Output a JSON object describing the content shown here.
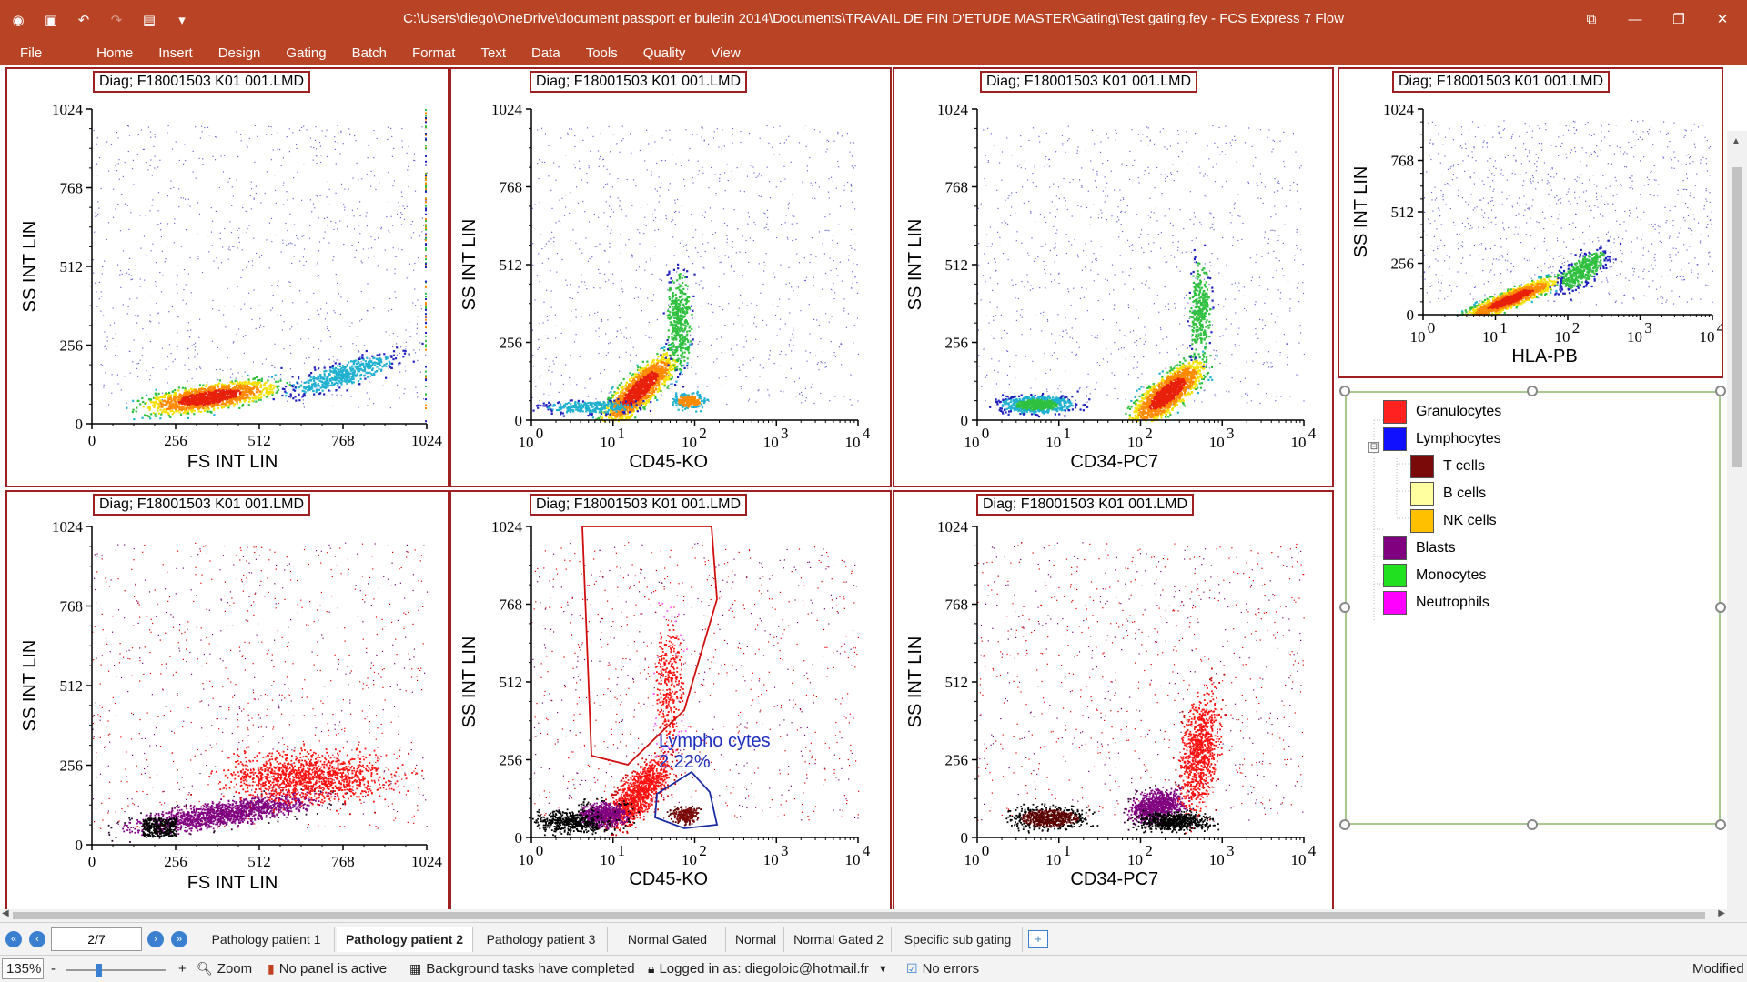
{
  "window": {
    "title": "C:\\Users\\diego\\OneDrive\\document passport er buletin 2014\\Documents\\TRAVAIL DE FIN D'ETUDE MASTER\\Gating\\Test gating.fey - FCS Express 7 Flow",
    "quick_access_icons": [
      "app-icon",
      "save-icon",
      "undo-icon",
      "redo-icon",
      "print-icon",
      "customize-icon"
    ],
    "controls": [
      "restore-icon",
      "minimize-icon",
      "maximize-icon",
      "close-icon"
    ]
  },
  "menu": [
    "File",
    "Home",
    "Insert",
    "Design",
    "Gating",
    "Batch",
    "Format",
    "Text",
    "Data",
    "Tools",
    "Quality",
    "View"
  ],
  "plots": [
    {
      "id": "p1",
      "title": "Diag; F18001503 K01 001.LMD",
      "xlabel": "FS INT LIN",
      "ylabel": "SS INT LIN",
      "x_scale": "linear",
      "x_ticks": [
        "0",
        "256",
        "512",
        "768",
        "1024"
      ],
      "y_ticks": [
        "0",
        "256",
        "512",
        "768",
        "1024"
      ],
      "style": "density"
    },
    {
      "id": "p2",
      "title": "Diag; F18001503 K01 001.LMD",
      "xlabel": "CD45-KO",
      "ylabel": "SS INT LIN",
      "x_scale": "log",
      "x_ticks": [
        "0",
        "1",
        "2",
        "3",
        "4"
      ],
      "y_ticks": [
        "0",
        "256",
        "512",
        "768",
        "1024"
      ],
      "style": "density"
    },
    {
      "id": "p3",
      "title": "Diag; F18001503 K01 001.LMD",
      "xlabel": "CD34-PC7",
      "ylabel": "SS INT LIN",
      "x_scale": "log",
      "x_ticks": [
        "0",
        "1",
        "2",
        "3",
        "4"
      ],
      "y_ticks": [
        "0",
        "256",
        "512",
        "768",
        "1024"
      ],
      "style": "density"
    },
    {
      "id": "p4",
      "title": "Diag; F18001503 K01 001.LMD",
      "xlabel": "HLA-PB",
      "ylabel": "SS INT LIN",
      "x_scale": "log",
      "x_ticks": [
        "0",
        "1",
        "2",
        "3",
        "4"
      ],
      "y_ticks": [
        "0",
        "256",
        "512",
        "768",
        "1024"
      ],
      "style": "density"
    },
    {
      "id": "p5",
      "title": "Diag; F18001503 K01 001.LMD",
      "xlabel": "FS INT LIN",
      "ylabel": "SS INT LIN",
      "x_scale": "linear",
      "x_ticks": [
        "0",
        "256",
        "512",
        "768",
        "1024"
      ],
      "y_ticks": [
        "0",
        "256",
        "512",
        "768",
        "1024"
      ],
      "style": "gated"
    },
    {
      "id": "p6",
      "title": "Diag; F18001503 K01 001.LMD",
      "xlabel": "CD45-KO",
      "ylabel": "SS INT LIN",
      "x_scale": "log",
      "x_ticks": [
        "0",
        "1",
        "2",
        "3",
        "4"
      ],
      "y_ticks": [
        "0",
        "256",
        "512",
        "768",
        "1024"
      ],
      "style": "gated",
      "gate_label": "Lympho cytes",
      "gate_pct": "2.22%"
    },
    {
      "id": "p7",
      "title": "Diag; F18001503 K01 001.LMD",
      "xlabel": "CD34-PC7",
      "ylabel": "SS INT LIN",
      "x_scale": "log",
      "x_ticks": [
        "0",
        "1",
        "2",
        "3",
        "4"
      ],
      "y_ticks": [
        "0",
        "256",
        "512",
        "768",
        "1024"
      ],
      "style": "gated"
    }
  ],
  "legend": [
    {
      "label": "Granulocytes",
      "color": "#ff2020",
      "indent": 0
    },
    {
      "label": "Lymphocytes",
      "color": "#1010ff",
      "indent": 0
    },
    {
      "label": "T cells",
      "color": "#7a0a0a",
      "indent": 1
    },
    {
      "label": "B cells",
      "color": "#ffffa0",
      "indent": 1
    },
    {
      "label": "NK cells",
      "color": "#ffc000",
      "indent": 1
    },
    {
      "label": "Blasts",
      "color": "#800080",
      "indent": 0
    },
    {
      "label": "Monocytes",
      "color": "#20e020",
      "indent": 0
    },
    {
      "label": "Neutrophils",
      "color": "#ff00ff",
      "indent": 0
    }
  ],
  "legend_expander": "⊟",
  "pager": {
    "current": "2/7"
  },
  "tabs": [
    "Pathology patient 1",
    "Pathology patient 2",
    "Pathology patient 3",
    "Normal Gated",
    "Normal",
    "Normal Gated 2",
    "Specific sub gating"
  ],
  "active_tab": "Pathology patient 2",
  "status": {
    "zoom_value": "135%",
    "zoom_minus": "-",
    "zoom_plus": "+",
    "zoom_label": "Zoom",
    "panel": "No panel is active",
    "background": "Background tasks have completed",
    "login": "Logged in as: diegoloic@hotmail.fr",
    "errors": "No errors",
    "modified": "Modified"
  }
}
